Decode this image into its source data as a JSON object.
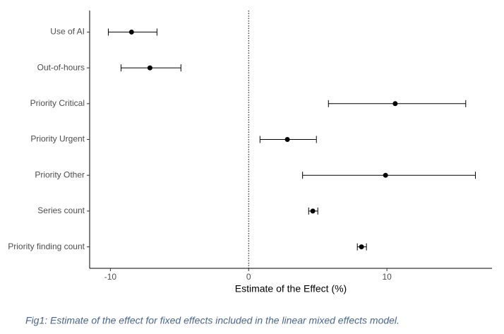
{
  "chart_data": {
    "type": "forest",
    "categories": [
      "Use of AI",
      "Out-of-hours",
      "Priority Critical",
      "Priority Urgent",
      "Priority Other",
      "Series count",
      "Priority finding count"
    ],
    "values": [
      -8.47,
      -7.14,
      10.6,
      2.8,
      9.9,
      4.64,
      8.16
    ],
    "lower": [
      -10.15,
      -9.23,
      5.77,
      0.82,
      3.9,
      4.34,
      7.86
    ],
    "upper": [
      -6.63,
      -4.9,
      15.7,
      4.9,
      16.4,
      5.0,
      8.52
    ],
    "color": "#000000",
    "xlim": [
      -11.5,
      17.6
    ],
    "xticks": [
      -10,
      0,
      10
    ],
    "reference_line": 0,
    "xlabel": "Estimate of the Effect (%)"
  },
  "caption": "Fig1: Estimate of the effect for fixed effects included in the linear mixed effects model."
}
